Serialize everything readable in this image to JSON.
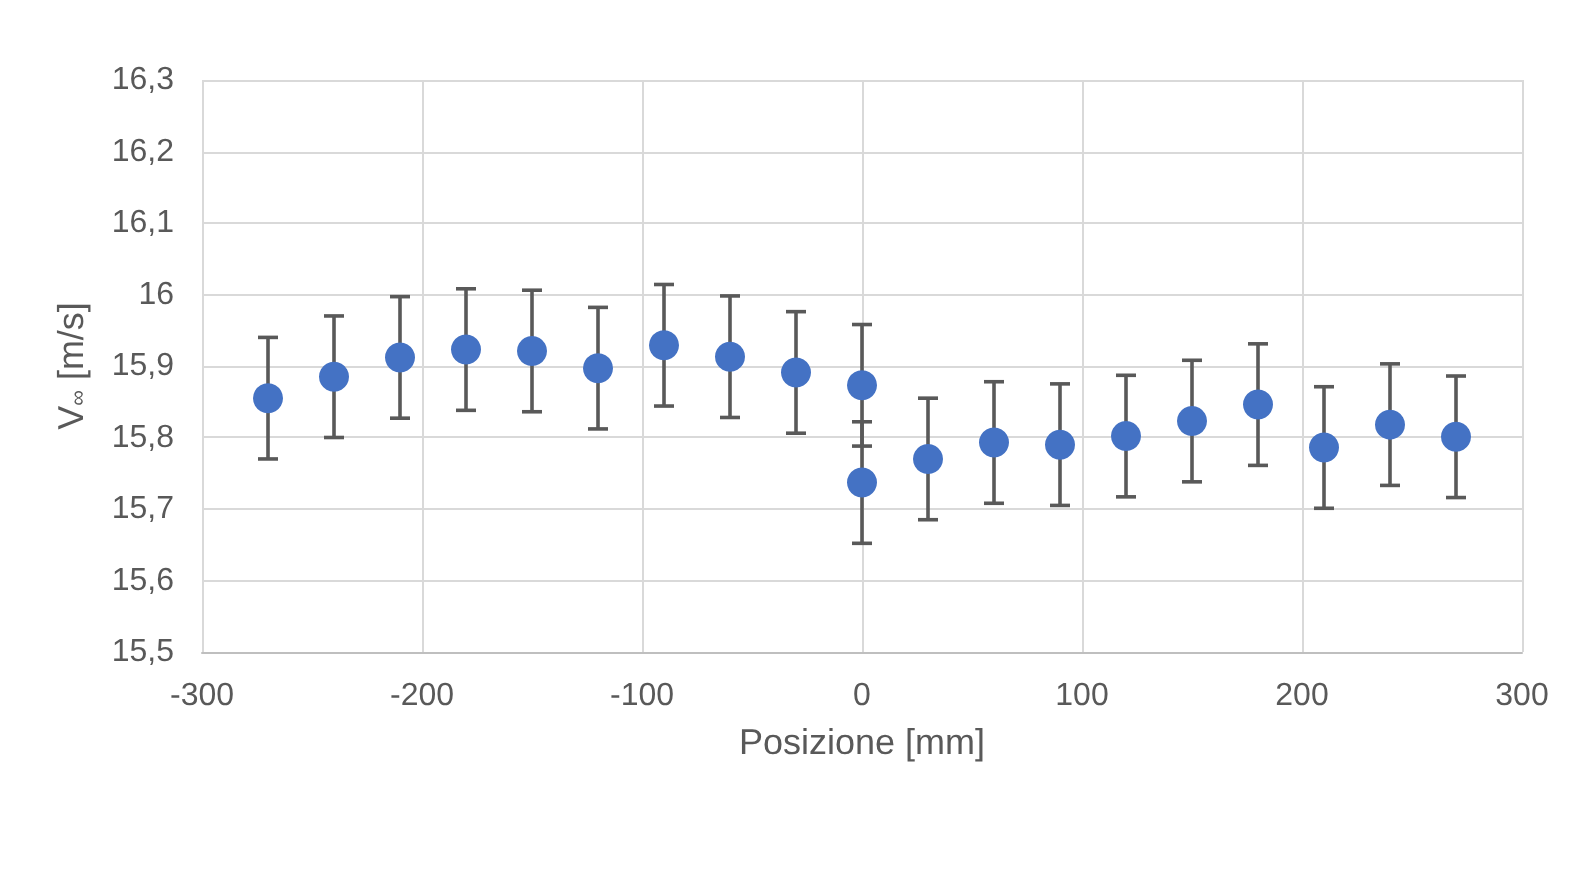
{
  "chart_data": {
    "type": "scatter",
    "xlabel": "Posizione [mm]",
    "ylabel": "V$_{∞}$ [m/s]",
    "x": [
      -270,
      -240,
      -210,
      -180,
      -150,
      -120,
      -90,
      -60,
      -30,
      0,
      0,
      30,
      60,
      90,
      120,
      150,
      180,
      210,
      240,
      270
    ],
    "series": [
      {
        "color": "#4472c4",
        "values": [
          15.855,
          15.885,
          15.912,
          15.923,
          15.921,
          15.897,
          15.929,
          15.913,
          15.891,
          15.873,
          15.737,
          15.77,
          15.793,
          15.79,
          15.802,
          15.823,
          15.846,
          15.786,
          15.818,
          15.801
        ],
        "errors": [
          0.085,
          0.085,
          0.085,
          0.085,
          0.085,
          0.085,
          0.085,
          0.085,
          0.085,
          0.085,
          0.085,
          0.085,
          0.085,
          0.085,
          0.085,
          0.085,
          0.085,
          0.085,
          0.085,
          0.085
        ]
      }
    ],
    "xlim": [
      -300,
      300
    ],
    "xticks": [
      -300,
      -200,
      -100,
      0,
      100,
      200,
      300
    ],
    "ylim": [
      15.5,
      16.3
    ],
    "yticks": [
      {
        "value": 15.5,
        "label": "15,5"
      },
      {
        "value": 15.6,
        "label": "15,6"
      },
      {
        "value": 15.7,
        "label": "15,7"
      },
      {
        "value": 15.8,
        "label": "15,8"
      },
      {
        "value": 15.9,
        "label": "15,9"
      },
      {
        "value": 16,
        "label": "16"
      },
      {
        "value": 16.1,
        "label": "16,1"
      },
      {
        "value": 16.2,
        "label": "16,2"
      },
      {
        "value": 16.3,
        "label": "16,3"
      }
    ],
    "grid": true,
    "marker": "circle"
  }
}
